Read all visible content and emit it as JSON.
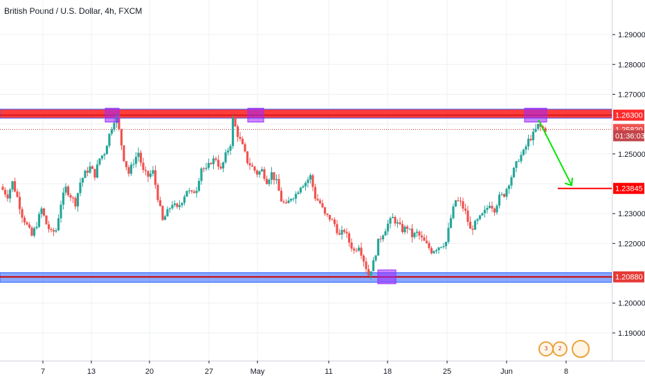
{
  "chart_title": "British Pound / U.S. Dollar, 4h, FXCM",
  "colors": {
    "up": "#26a69a",
    "down": "#ef5350",
    "resistance": "#ff1a1a",
    "support": "#2962ff",
    "marker": "#9c27ff",
    "projection": "#00e600",
    "target_line": "#ff0000",
    "grid": "#eef0f3",
    "countdown_tag": "#c2444a"
  },
  "events": {
    "badge_count_1": "3",
    "badge_count_2": "2"
  },
  "chart_data": {
    "type": "candlestick",
    "symbol": "British Pound / U.S. Dollar",
    "timeframe": "4h",
    "source": "FXCM",
    "x_ticks": [
      "7",
      "13",
      "20",
      "27",
      "May",
      "11",
      "18",
      "25",
      "Jun",
      "8"
    ],
    "y_ticks": [
      "1.29000",
      "1.28000",
      "1.27000",
      "1.25000",
      "1.23000",
      "1.22000",
      "1.20000",
      "1.19000"
    ],
    "ylim": [
      1.1835,
      1.2965
    ],
    "price_tags": {
      "resistance": "1.26300",
      "last_price": "1.25820",
      "countdown": "01:36:03",
      "target": "1.23845",
      "support": "1.20880"
    },
    "levels": {
      "resistance_zone": [
        1.262,
        1.265
      ],
      "resistance_line": 1.263,
      "support_zone": [
        1.207,
        1.2102
      ],
      "support_line": 1.2088,
      "target": 1.23845,
      "last_price": 1.2582
    },
    "touch_markers": [
      {
        "date": "Apr 14",
        "level": "resistance"
      },
      {
        "date": "Apr 30",
        "level": "resistance"
      },
      {
        "date": "May 18",
        "level": "support"
      },
      {
        "date": "Jun 4",
        "level": "resistance"
      }
    ],
    "projection": {
      "from": 1.2615,
      "to": 1.2395,
      "target": 1.23845
    },
    "path": [
      [
        0,
        1.238
      ],
      [
        2,
        1.236
      ],
      [
        4,
        1.2405
      ],
      [
        6,
        1.2355
      ],
      [
        8,
        1.2295
      ],
      [
        10,
        1.226
      ],
      [
        12,
        1.2225
      ],
      [
        14,
        1.2265
      ],
      [
        16,
        1.2315
      ],
      [
        18,
        1.2265
      ],
      [
        20,
        1.2235
      ],
      [
        22,
        1.2245
      ],
      [
        24,
        1.2335
      ],
      [
        26,
        1.2385
      ],
      [
        28,
        1.236
      ],
      [
        30,
        1.2335
      ],
      [
        32,
        1.2405
      ],
      [
        34,
        1.2435
      ],
      [
        36,
        1.2455
      ],
      [
        38,
        1.243
      ],
      [
        40,
        1.2485
      ],
      [
        42,
        1.2505
      ],
      [
        44,
        1.2565
      ],
      [
        46,
        1.2615
      ],
      [
        47,
        1.2625
      ],
      [
        50,
        1.2485
      ],
      [
        52,
        1.2435
      ],
      [
        54,
        1.2475
      ],
      [
        56,
        1.2505
      ],
      [
        58,
        1.244
      ],
      [
        60,
        1.2425
      ],
      [
        62,
        1.244
      ],
      [
        64,
        1.2355
      ],
      [
        66,
        1.2275
      ],
      [
        68,
        1.2305
      ],
      [
        70,
        1.2335
      ],
      [
        72,
        1.2315
      ],
      [
        74,
        1.2345
      ],
      [
        76,
        1.238
      ],
      [
        78,
        1.2365
      ],
      [
        80,
        1.2385
      ],
      [
        82,
        1.2455
      ],
      [
        84,
        1.2445
      ],
      [
        86,
        1.2475
      ],
      [
        88,
        1.2485
      ],
      [
        90,
        1.2445
      ],
      [
        92,
        1.2495
      ],
      [
        94,
        1.2535
      ],
      [
        95,
        1.2615
      ],
      [
        97,
        1.2565
      ],
      [
        99,
        1.2525
      ],
      [
        101,
        1.2475
      ],
      [
        103,
        1.2455
      ],
      [
        105,
        1.2435
      ],
      [
        107,
        1.2445
      ],
      [
        109,
        1.241
      ],
      [
        111,
        1.2435
      ],
      [
        113,
        1.2405
      ],
      [
        115,
        1.2345
      ],
      [
        117,
        1.2325
      ],
      [
        119,
        1.2355
      ],
      [
        121,
        1.2365
      ],
      [
        123,
        1.2395
      ],
      [
        125,
        1.2405
      ],
      [
        127,
        1.2425
      ],
      [
        129,
        1.2355
      ],
      [
        131,
        1.2335
      ],
      [
        133,
        1.2295
      ],
      [
        135,
        1.2285
      ],
      [
        137,
        1.2265
      ],
      [
        139,
        1.2225
      ],
      [
        141,
        1.2245
      ],
      [
        143,
        1.2205
      ],
      [
        145,
        1.2175
      ],
      [
        147,
        1.2195
      ],
      [
        149,
        1.2145
      ],
      [
        151,
        1.2095
      ],
      [
        153,
        1.2135
      ],
      [
        155,
        1.2205
      ],
      [
        157,
        1.2235
      ],
      [
        159,
        1.2265
      ],
      [
        161,
        1.2285
      ],
      [
        163,
        1.2265
      ],
      [
        165,
        1.2245
      ],
      [
        167,
        1.2255
      ],
      [
        169,
        1.2225
      ],
      [
        171,
        1.2235
      ],
      [
        173,
        1.2215
      ],
      [
        175,
        1.2195
      ],
      [
        177,
        1.2175
      ],
      [
        179,
        1.2185
      ],
      [
        181,
        1.2195
      ],
      [
        183,
        1.2205
      ],
      [
        185,
        1.2285
      ],
      [
        187,
        1.2345
      ],
      [
        189,
        1.2335
      ],
      [
        191,
        1.2305
      ],
      [
        193,
        1.2245
      ],
      [
        195,
        1.2265
      ],
      [
        197,
        1.2285
      ],
      [
        199,
        1.2305
      ],
      [
        201,
        1.2335
      ],
      [
        203,
        1.2315
      ],
      [
        205,
        1.2355
      ],
      [
        207,
        1.2365
      ],
      [
        209,
        1.2405
      ],
      [
        211,
        1.2445
      ],
      [
        213,
        1.2485
      ],
      [
        215,
        1.2505
      ],
      [
        217,
        1.2545
      ],
      [
        219,
        1.2565
      ],
      [
        221,
        1.2595
      ],
      [
        223,
        1.2585
      ],
      [
        224,
        1.2582
      ]
    ]
  }
}
